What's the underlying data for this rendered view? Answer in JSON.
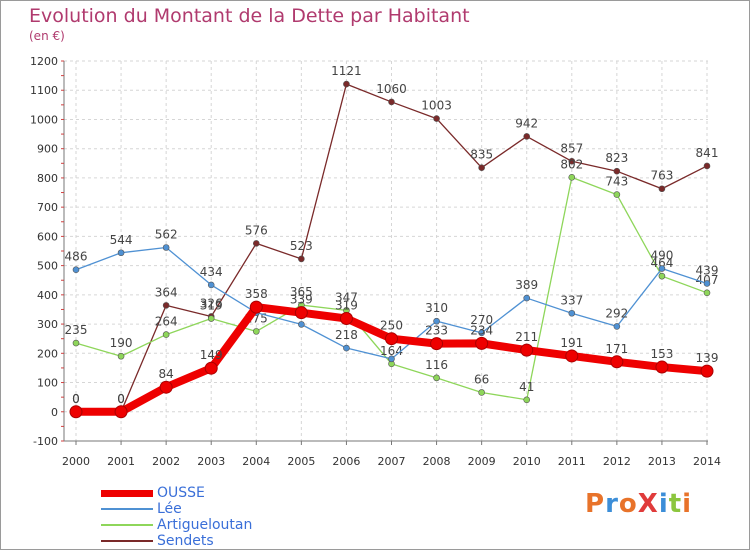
{
  "header": {
    "title": "Evolution du Montant de la Dette par Habitant",
    "subtitle": "(en €)"
  },
  "logo": {
    "text": "ProXiti",
    "colors": [
      "#e8732a",
      "#3c8ed8",
      "#e8732a",
      "#e03b3b",
      "#3c8ed8",
      "#8cc63e",
      "#e8732a"
    ]
  },
  "chart_data": {
    "type": "line",
    "title": "Evolution du Montant de la Dette par Habitant",
    "subtitle": "(en €)",
    "x": [
      "2000",
      "2001",
      "2002",
      "2003",
      "2004",
      "2005",
      "2006",
      "2007",
      "2008",
      "2009",
      "2010",
      "2011",
      "2012",
      "2013",
      "2014"
    ],
    "ylim": [
      -100,
      1200
    ],
    "yticks": [
      -100,
      0,
      100,
      200,
      300,
      400,
      500,
      600,
      700,
      800,
      900,
      1000,
      1100,
      1200
    ],
    "grid": true,
    "legend_position": "bottom-left",
    "series": [
      {
        "name": "Sendets",
        "color": "#7a2a2a",
        "values": [
          0,
          0,
          364,
          326,
          576,
          523,
          1121,
          1060,
          1003,
          835,
          942,
          857,
          823,
          763,
          841
        ],
        "labels": [
          "0",
          "0",
          "364",
          "326",
          "576",
          "523",
          "1121",
          "1060",
          "1003",
          "835",
          "942",
          "857",
          "823",
          "763",
          "841"
        ]
      },
      {
        "name": "Artigueloutan",
        "color": "#8ed65a",
        "values": [
          235,
          190,
          264,
          319,
          275,
          365,
          347,
          164,
          116,
          66,
          41,
          802,
          743,
          464,
          407
        ],
        "labels": [
          "235",
          "190",
          "264",
          "319",
          "275",
          "365",
          "347",
          "164",
          "116",
          "66",
          "41",
          "802",
          "743",
          "464",
          "407"
        ]
      },
      {
        "name": "Lée",
        "color": "#4f91d3",
        "values": [
          486,
          544,
          562,
          434,
          339,
          299,
          218,
          181,
          310,
          270,
          389,
          337,
          292,
          490,
          439
        ],
        "labels": [
          "486",
          "544",
          "562",
          "434",
          "",
          "",
          "218",
          "",
          "310",
          "270",
          "389",
          "337",
          "292",
          "490",
          "439"
        ]
      },
      {
        "name": "OUSSE",
        "color": "#ee0000",
        "values": [
          0,
          0,
          84,
          149,
          358,
          339,
          319,
          250,
          233,
          234,
          211,
          191,
          171,
          153,
          139
        ],
        "labels": [
          "0",
          "0",
          "84",
          "149",
          "358",
          "339",
          "319",
          "250",
          "233",
          "234",
          "211",
          "191",
          "171",
          "153",
          "139"
        ]
      }
    ]
  },
  "legend": {
    "items": [
      {
        "label": "OUSSE",
        "color": "#ee0000",
        "thick": true
      },
      {
        "label": "Lée",
        "color": "#4f91d3",
        "thick": false
      },
      {
        "label": "Artigueloutan",
        "color": "#8ed65a",
        "thick": false
      },
      {
        "label": "Sendets",
        "color": "#7a2a2a",
        "thick": false
      }
    ]
  }
}
